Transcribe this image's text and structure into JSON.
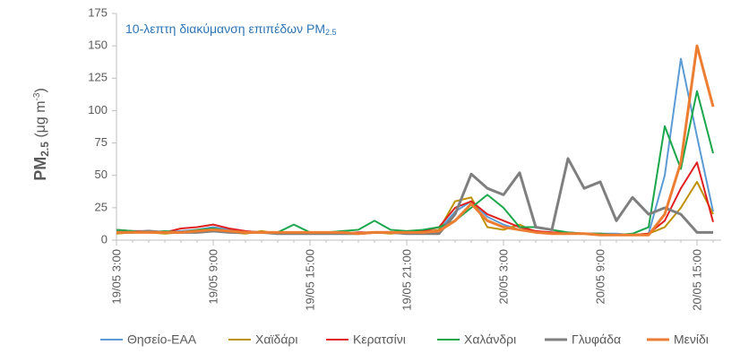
{
  "chart_data": {
    "type": "line",
    "title": [
      "10-λεπτη διακύμανση επιπέδων PM",
      "2.5"
    ],
    "y_label": [
      "PM",
      "2.5",
      " (μg m",
      "-3",
      ")"
    ],
    "categories": [
      "19/05 3:00",
      null,
      null,
      null,
      null,
      null,
      "19/05 9:00",
      null,
      null,
      null,
      null,
      null,
      "19/05 15:00",
      null,
      null,
      null,
      null,
      null,
      "19/05 21:00",
      null,
      null,
      null,
      null,
      null,
      "20/05 3:00",
      null,
      null,
      null,
      null,
      null,
      "20/05 9:00",
      null,
      null,
      null,
      null,
      null,
      "20/05 15:00",
      null
    ],
    "ylim": [
      0,
      175
    ],
    "yticks": [
      0,
      25,
      50,
      75,
      100,
      125,
      150,
      175
    ],
    "series": [
      {
        "name": "Θησείο-ΕΑΑ",
        "color": "#5b9bd5",
        "values": [
          7,
          7,
          6,
          6,
          7,
          8,
          10,
          8,
          6,
          6,
          5,
          5,
          5,
          5,
          5,
          5,
          6,
          6,
          6,
          6,
          8,
          22,
          30,
          18,
          12,
          8,
          6,
          5,
          5,
          5,
          5,
          5,
          4,
          5,
          50,
          140,
          80,
          22
        ]
      },
      {
        "name": "Χαϊδάρι",
        "color": "#bf9000",
        "values": [
          5,
          6,
          6,
          5,
          6,
          7,
          7,
          6,
          5,
          7,
          5,
          6,
          5,
          5,
          5,
          6,
          6,
          5,
          6,
          6,
          8,
          30,
          33,
          10,
          8,
          12,
          6,
          6,
          5,
          5,
          4,
          4,
          4,
          5,
          10,
          25,
          45,
          20
        ]
      },
      {
        "name": "Κερατσίνι",
        "color": "#e02020",
        "values": [
          8,
          7,
          7,
          6,
          9,
          10,
          12,
          9,
          7,
          6,
          6,
          6,
          6,
          5,
          5,
          6,
          6,
          6,
          6,
          7,
          10,
          25,
          30,
          20,
          15,
          10,
          7,
          6,
          6,
          5,
          5,
          4,
          4,
          5,
          15,
          40,
          60,
          14
        ]
      },
      {
        "name": "Χαλάνδρι",
        "color": "#1aa64a",
        "values": [
          8,
          7,
          6,
          7,
          6,
          8,
          9,
          7,
          6,
          6,
          6,
          12,
          6,
          6,
          7,
          8,
          15,
          8,
          7,
          8,
          10,
          15,
          25,
          35,
          25,
          10,
          10,
          8,
          6,
          5,
          5,
          4,
          5,
          10,
          88,
          55,
          115,
          67
        ]
      },
      {
        "name": "Γλυφάδα",
        "color": "#7f7f7f",
        "values": [
          6,
          6,
          7,
          6,
          6,
          6,
          7,
          6,
          6,
          6,
          5,
          5,
          5,
          5,
          5,
          5,
          6,
          6,
          5,
          5,
          5,
          20,
          51,
          40,
          35,
          52,
          10,
          8,
          63,
          40,
          45,
          15,
          33,
          20,
          25,
          20,
          6,
          6
        ]
      },
      {
        "name": "Μενίδι",
        "color": "#ed7d31",
        "values": [
          6,
          6,
          6,
          6,
          6,
          7,
          8,
          7,
          6,
          6,
          6,
          6,
          6,
          6,
          6,
          5,
          6,
          6,
          6,
          6,
          7,
          15,
          28,
          15,
          10,
          8,
          6,
          5,
          5,
          5,
          4,
          4,
          4,
          4,
          20,
          60,
          150,
          103
        ]
      }
    ]
  }
}
